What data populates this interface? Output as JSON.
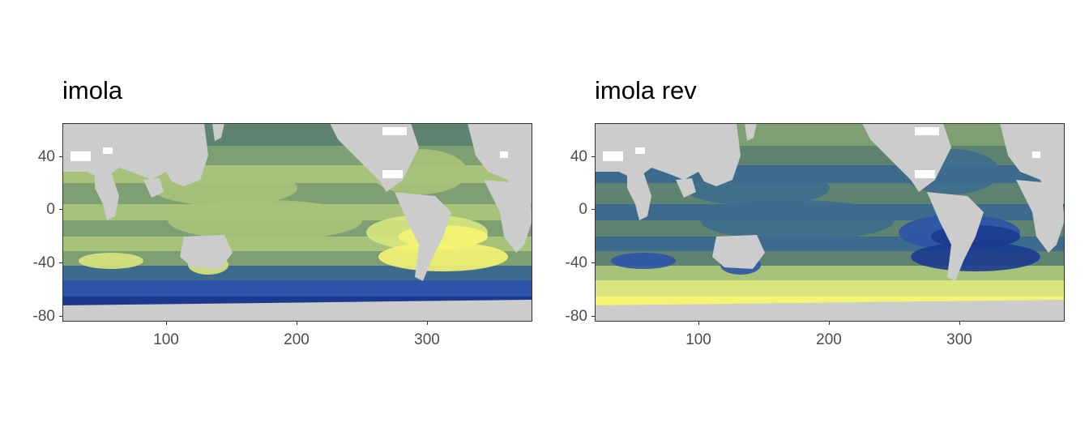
{
  "panels": [
    {
      "title": "imola",
      "x_ticks": [
        "100",
        "200",
        "300"
      ],
      "y_ticks": [
        "40",
        "0",
        "-40",
        "-80"
      ],
      "palette": [
        "#1b3a8f",
        "#2c54a8",
        "#3d6b8e",
        "#5e8471",
        "#7d9f72",
        "#a7c279",
        "#d9e680",
        "#f4f473"
      ]
    },
    {
      "title": "imola rev",
      "x_ticks": [
        "100",
        "200",
        "300"
      ],
      "y_ticks": [
        "40",
        "0",
        "-40",
        "-80"
      ],
      "palette": [
        "#f4f473",
        "#d9e680",
        "#a7c279",
        "#7d9f72",
        "#5e8471",
        "#3d6b8e",
        "#2c54a8",
        "#1b3a8f"
      ]
    }
  ],
  "chart_data": [
    {
      "type": "heatmap",
      "title": "imola",
      "xlabel": "",
      "ylabel": "",
      "x_ticks": [
        100,
        200,
        300
      ],
      "y_ticks": [
        40,
        0,
        -40,
        -80
      ],
      "xlim": [
        20,
        380
      ],
      "ylim": [
        -85,
        65
      ],
      "grid": false,
      "land_color": "#cccccc"
    },
    {
      "type": "heatmap",
      "title": "imola rev",
      "xlabel": "",
      "ylabel": "",
      "x_ticks": [
        100,
        200,
        300
      ],
      "y_ticks": [
        40,
        0,
        -40,
        -80
      ],
      "xlim": [
        20,
        380
      ],
      "ylim": [
        -85,
        65
      ],
      "grid": false,
      "land_color": "#cccccc"
    }
  ]
}
